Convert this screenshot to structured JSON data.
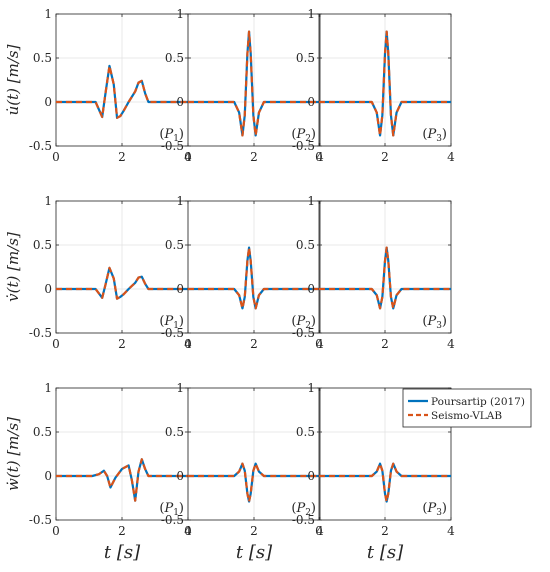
{
  "chart_data": {
    "type": "line",
    "layout": "3x3 grid of panels",
    "x_ticks": [
      "0",
      "2",
      "4"
    ],
    "y_ticks": [
      "-0.5",
      "0",
      "0.5",
      "1"
    ],
    "xlim": [
      0,
      4
    ],
    "ylim": [
      -0.5,
      1
    ],
    "grid": true,
    "row_ylabels": [
      "u̇(t) [m/s]",
      "v̇(t) [m/s]",
      "ẇ(t) [m/s]"
    ],
    "xlabel": "t [s]",
    "legend": {
      "placement": "top-right of bottom-right panel",
      "entries": [
        {
          "name": "Poursartip (2017)",
          "color": "#0072BD",
          "style": "solid"
        },
        {
          "name": "Seismo-VLAB",
          "color": "#D95319",
          "style": "dashed"
        }
      ]
    },
    "series_colors": {
      "poursartip": "#0072BD",
      "seismo_vlab": "#D95319"
    },
    "panels": [
      {
        "row": 0,
        "col": 0,
        "label": "(P1)",
        "x": [
          0,
          1.2,
          1.4,
          1.5,
          1.62,
          1.75,
          1.85,
          1.95,
          2.05,
          2.2,
          2.4,
          2.5,
          2.6,
          2.7,
          2.8,
          3.0,
          4
        ],
        "y": [
          0,
          0,
          -0.17,
          0.1,
          0.41,
          0.2,
          -0.18,
          -0.16,
          -0.1,
          0,
          0.12,
          0.22,
          0.24,
          0.1,
          0,
          0,
          0
        ]
      },
      {
        "row": 0,
        "col": 1,
        "label": "(P2)",
        "x": [
          0,
          1.4,
          1.55,
          1.65,
          1.72,
          1.8,
          1.85,
          1.9,
          1.98,
          2.05,
          2.15,
          2.3,
          2.5,
          4
        ],
        "y": [
          0,
          0,
          -0.12,
          -0.38,
          -0.15,
          0.55,
          0.8,
          0.55,
          -0.15,
          -0.38,
          -0.12,
          0,
          0,
          0
        ]
      },
      {
        "row": 0,
        "col": 2,
        "label": "(P3)",
        "x": [
          0,
          1.6,
          1.75,
          1.85,
          1.92,
          2.0,
          2.05,
          2.1,
          2.18,
          2.25,
          2.35,
          2.5,
          2.7,
          4
        ],
        "y": [
          0,
          0,
          -0.12,
          -0.38,
          -0.15,
          0.55,
          0.8,
          0.55,
          -0.15,
          -0.38,
          -0.12,
          0,
          0,
          0
        ]
      },
      {
        "row": 1,
        "col": 0,
        "label": "(P1)",
        "x": [
          0,
          1.2,
          1.4,
          1.5,
          1.62,
          1.75,
          1.85,
          1.95,
          2.05,
          2.2,
          2.4,
          2.5,
          2.6,
          2.7,
          2.8,
          3.0,
          4
        ],
        "y": [
          0,
          0,
          -0.1,
          0.05,
          0.24,
          0.12,
          -0.11,
          -0.09,
          -0.06,
          0,
          0.07,
          0.13,
          0.14,
          0.06,
          0,
          0,
          0
        ]
      },
      {
        "row": 1,
        "col": 1,
        "label": "(P2)",
        "x": [
          0,
          1.4,
          1.55,
          1.65,
          1.72,
          1.8,
          1.85,
          1.9,
          1.98,
          2.05,
          2.15,
          2.3,
          2.5,
          4
        ],
        "y": [
          0,
          0,
          -0.07,
          -0.22,
          -0.09,
          0.32,
          0.47,
          0.32,
          -0.09,
          -0.22,
          -0.07,
          0,
          0,
          0
        ]
      },
      {
        "row": 1,
        "col": 2,
        "label": "(P3)",
        "x": [
          0,
          1.6,
          1.75,
          1.85,
          1.92,
          2.0,
          2.05,
          2.1,
          2.18,
          2.25,
          2.35,
          2.5,
          2.7,
          4
        ],
        "y": [
          0,
          0,
          -0.07,
          -0.22,
          -0.09,
          0.32,
          0.47,
          0.32,
          -0.09,
          -0.22,
          -0.07,
          0,
          0,
          0
        ]
      },
      {
        "row": 2,
        "col": 0,
        "label": "(P1)",
        "x": [
          0,
          1.1,
          1.3,
          1.45,
          1.55,
          1.65,
          1.8,
          2.0,
          2.2,
          2.3,
          2.4,
          2.5,
          2.6,
          2.7,
          2.8,
          3.0,
          4
        ],
        "y": [
          0,
          0,
          0.02,
          0.06,
          0,
          -0.13,
          -0.02,
          0.08,
          0.12,
          -0.05,
          -0.28,
          0.05,
          0.19,
          0.08,
          0,
          0,
          0
        ]
      },
      {
        "row": 2,
        "col": 1,
        "label": "(P2)",
        "x": [
          0,
          1.4,
          1.55,
          1.65,
          1.72,
          1.8,
          1.85,
          1.9,
          1.98,
          2.05,
          2.15,
          2.3,
          2.5,
          4
        ],
        "y": [
          0,
          0,
          0.05,
          0.14,
          0.06,
          -0.2,
          -0.29,
          -0.2,
          0.06,
          0.14,
          0.05,
          0,
          0,
          0
        ]
      },
      {
        "row": 2,
        "col": 2,
        "label": "(P3)",
        "x": [
          0,
          1.6,
          1.75,
          1.85,
          1.92,
          2.0,
          2.05,
          2.1,
          2.18,
          2.25,
          2.35,
          2.5,
          2.7,
          4
        ],
        "y": [
          0,
          0,
          0.05,
          0.14,
          0.06,
          -0.2,
          -0.29,
          -0.2,
          0.06,
          0.14,
          0.05,
          0,
          0,
          0
        ]
      }
    ]
  }
}
